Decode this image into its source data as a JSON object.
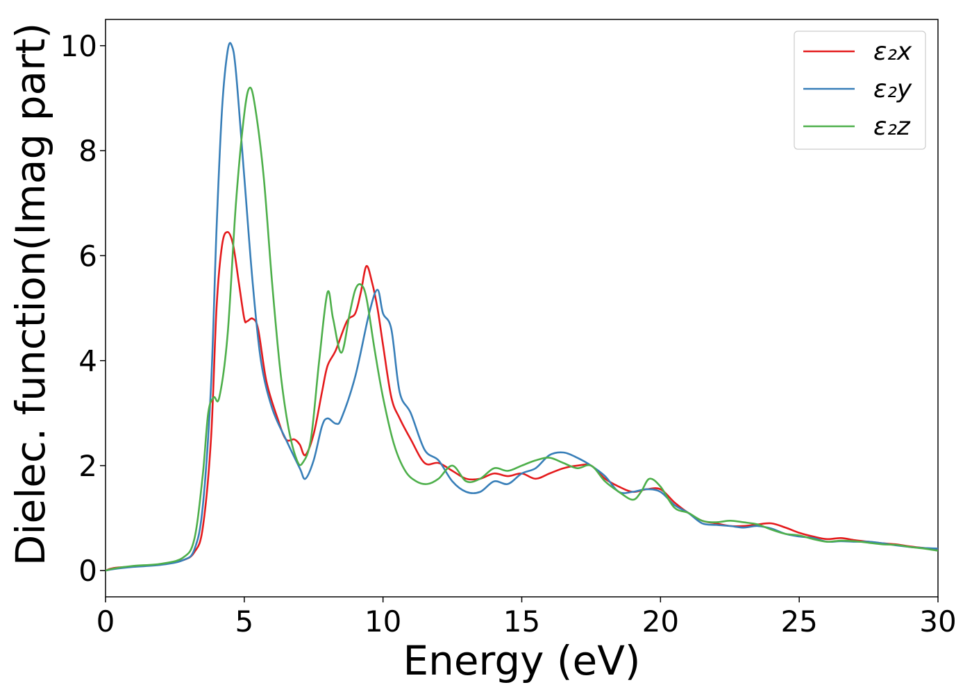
{
  "chart_data": {
    "type": "line",
    "xlabel": "Energy (eV)",
    "ylabel": "Dielec. function(Imag part)",
    "xlim": [
      0,
      30
    ],
    "ylim": [
      -0.5,
      10.5
    ],
    "xticks": [
      0,
      5,
      10,
      15,
      20,
      25,
      30
    ],
    "yticks": [
      0,
      2,
      4,
      6,
      8,
      10
    ],
    "grid": false,
    "legend_position": "top-right",
    "series": [
      {
        "name": "ε₂x",
        "color": "#e41a1c",
        "points": [
          [
            0,
            0.0
          ],
          [
            0.3,
            0.05
          ],
          [
            1,
            0.08
          ],
          [
            2,
            0.12
          ],
          [
            2.8,
            0.2
          ],
          [
            3.2,
            0.35
          ],
          [
            3.5,
            0.8
          ],
          [
            3.8,
            2.5
          ],
          [
            4.0,
            5.0
          ],
          [
            4.2,
            6.2
          ],
          [
            4.4,
            6.45
          ],
          [
            4.6,
            6.2
          ],
          [
            4.8,
            5.5
          ],
          [
            5.0,
            4.8
          ],
          [
            5.1,
            4.75
          ],
          [
            5.3,
            4.8
          ],
          [
            5.5,
            4.6
          ],
          [
            5.8,
            3.6
          ],
          [
            6.2,
            2.9
          ],
          [
            6.5,
            2.5
          ],
          [
            6.8,
            2.5
          ],
          [
            7.0,
            2.4
          ],
          [
            7.2,
            2.2
          ],
          [
            7.5,
            2.6
          ],
          [
            7.8,
            3.4
          ],
          [
            8.0,
            3.9
          ],
          [
            8.3,
            4.2
          ],
          [
            8.7,
            4.75
          ],
          [
            9.0,
            4.9
          ],
          [
            9.2,
            5.3
          ],
          [
            9.4,
            5.8
          ],
          [
            9.6,
            5.5
          ],
          [
            9.8,
            5.0
          ],
          [
            10.0,
            4.3
          ],
          [
            10.3,
            3.3
          ],
          [
            10.6,
            2.9
          ],
          [
            11.0,
            2.5
          ],
          [
            11.5,
            2.05
          ],
          [
            12.0,
            2.05
          ],
          [
            12.5,
            1.9
          ],
          [
            13.0,
            1.75
          ],
          [
            13.5,
            1.75
          ],
          [
            14.0,
            1.85
          ],
          [
            14.5,
            1.8
          ],
          [
            15.0,
            1.85
          ],
          [
            15.5,
            1.75
          ],
          [
            16.0,
            1.85
          ],
          [
            16.5,
            1.95
          ],
          [
            17.0,
            2.0
          ],
          [
            17.5,
            2.0
          ],
          [
            18.0,
            1.75
          ],
          [
            18.5,
            1.6
          ],
          [
            19.0,
            1.5
          ],
          [
            19.5,
            1.55
          ],
          [
            20.0,
            1.55
          ],
          [
            20.5,
            1.3
          ],
          [
            21.0,
            1.1
          ],
          [
            21.5,
            0.95
          ],
          [
            22.0,
            0.9
          ],
          [
            22.5,
            0.85
          ],
          [
            23.0,
            0.85
          ],
          [
            23.5,
            0.88
          ],
          [
            24.0,
            0.9
          ],
          [
            24.5,
            0.82
          ],
          [
            25.0,
            0.72
          ],
          [
            25.5,
            0.65
          ],
          [
            26.0,
            0.6
          ],
          [
            26.5,
            0.62
          ],
          [
            27.0,
            0.58
          ],
          [
            27.5,
            0.55
          ],
          [
            28.0,
            0.52
          ],
          [
            28.5,
            0.5
          ],
          [
            29.0,
            0.46
          ],
          [
            29.5,
            0.43
          ],
          [
            30.0,
            0.4
          ]
        ]
      },
      {
        "name": "ε₂y",
        "color": "#377eb8",
        "points": [
          [
            0,
            0.0
          ],
          [
            0.3,
            0.03
          ],
          [
            1,
            0.07
          ],
          [
            2,
            0.11
          ],
          [
            2.8,
            0.2
          ],
          [
            3.2,
            0.4
          ],
          [
            3.5,
            1.2
          ],
          [
            3.8,
            3.5
          ],
          [
            4.0,
            6.5
          ],
          [
            4.2,
            8.8
          ],
          [
            4.4,
            9.9
          ],
          [
            4.55,
            10.0
          ],
          [
            4.7,
            9.5
          ],
          [
            5.0,
            7.5
          ],
          [
            5.3,
            5.5
          ],
          [
            5.6,
            4.0
          ],
          [
            6.0,
            3.1
          ],
          [
            6.5,
            2.5
          ],
          [
            7.0,
            1.95
          ],
          [
            7.2,
            1.75
          ],
          [
            7.5,
            2.1
          ],
          [
            7.8,
            2.75
          ],
          [
            8.0,
            2.9
          ],
          [
            8.3,
            2.8
          ],
          [
            8.5,
            2.9
          ],
          [
            9.0,
            3.7
          ],
          [
            9.5,
            4.9
          ],
          [
            9.8,
            5.35
          ],
          [
            10.0,
            4.9
          ],
          [
            10.3,
            4.6
          ],
          [
            10.6,
            3.4
          ],
          [
            11.0,
            3.0
          ],
          [
            11.5,
            2.3
          ],
          [
            12.0,
            2.1
          ],
          [
            12.5,
            1.7
          ],
          [
            13.0,
            1.5
          ],
          [
            13.5,
            1.5
          ],
          [
            14.0,
            1.7
          ],
          [
            14.5,
            1.65
          ],
          [
            15.0,
            1.85
          ],
          [
            15.5,
            1.95
          ],
          [
            16.0,
            2.2
          ],
          [
            16.5,
            2.25
          ],
          [
            17.0,
            2.15
          ],
          [
            17.5,
            2.0
          ],
          [
            18.0,
            1.8
          ],
          [
            18.5,
            1.5
          ],
          [
            19.0,
            1.5
          ],
          [
            19.5,
            1.55
          ],
          [
            20.0,
            1.5
          ],
          [
            20.5,
            1.25
          ],
          [
            21.0,
            1.1
          ],
          [
            21.5,
            0.9
          ],
          [
            22.0,
            0.87
          ],
          [
            22.5,
            0.85
          ],
          [
            23.0,
            0.82
          ],
          [
            23.5,
            0.85
          ],
          [
            24.0,
            0.8
          ],
          [
            24.5,
            0.7
          ],
          [
            25.0,
            0.65
          ],
          [
            25.5,
            0.62
          ],
          [
            26.0,
            0.55
          ],
          [
            26.5,
            0.56
          ],
          [
            27.0,
            0.55
          ],
          [
            27.5,
            0.55
          ],
          [
            28.0,
            0.52
          ],
          [
            28.5,
            0.48
          ],
          [
            29.0,
            0.45
          ],
          [
            29.5,
            0.43
          ],
          [
            30.0,
            0.42
          ]
        ]
      },
      {
        "name": "ε₂z",
        "color": "#4daf4a",
        "points": [
          [
            0,
            0.0
          ],
          [
            0.3,
            0.04
          ],
          [
            1,
            0.09
          ],
          [
            2,
            0.13
          ],
          [
            2.8,
            0.25
          ],
          [
            3.2,
            0.6
          ],
          [
            3.5,
            1.8
          ],
          [
            3.7,
            3.0
          ],
          [
            3.9,
            3.3
          ],
          [
            4.1,
            3.3
          ],
          [
            4.4,
            4.5
          ],
          [
            4.7,
            7.0
          ],
          [
            5.0,
            8.7
          ],
          [
            5.2,
            9.2
          ],
          [
            5.4,
            8.8
          ],
          [
            5.7,
            7.5
          ],
          [
            6.0,
            5.5
          ],
          [
            6.3,
            3.8
          ],
          [
            6.6,
            2.7
          ],
          [
            6.9,
            2.1
          ],
          [
            7.1,
            2.05
          ],
          [
            7.4,
            2.5
          ],
          [
            7.7,
            4.0
          ],
          [
            8.0,
            5.3
          ],
          [
            8.2,
            4.8
          ],
          [
            8.5,
            4.15
          ],
          [
            8.8,
            4.9
          ],
          [
            9.0,
            5.35
          ],
          [
            9.2,
            5.45
          ],
          [
            9.4,
            5.2
          ],
          [
            9.7,
            4.2
          ],
          [
            10.0,
            3.3
          ],
          [
            10.4,
            2.4
          ],
          [
            10.8,
            1.9
          ],
          [
            11.2,
            1.7
          ],
          [
            11.6,
            1.65
          ],
          [
            12.0,
            1.75
          ],
          [
            12.5,
            2.0
          ],
          [
            13.0,
            1.7
          ],
          [
            13.5,
            1.75
          ],
          [
            14.0,
            1.95
          ],
          [
            14.5,
            1.9
          ],
          [
            15.0,
            2.0
          ],
          [
            15.5,
            2.1
          ],
          [
            16.0,
            2.15
          ],
          [
            16.5,
            2.05
          ],
          [
            17.0,
            1.95
          ],
          [
            17.5,
            2.0
          ],
          [
            18.0,
            1.7
          ],
          [
            18.5,
            1.5
          ],
          [
            19.0,
            1.35
          ],
          [
            19.3,
            1.5
          ],
          [
            19.6,
            1.75
          ],
          [
            20.0,
            1.6
          ],
          [
            20.5,
            1.2
          ],
          [
            21.0,
            1.1
          ],
          [
            21.5,
            0.95
          ],
          [
            22.0,
            0.92
          ],
          [
            22.5,
            0.95
          ],
          [
            23.0,
            0.92
          ],
          [
            23.5,
            0.88
          ],
          [
            24.0,
            0.78
          ],
          [
            24.5,
            0.7
          ],
          [
            25.0,
            0.67
          ],
          [
            25.5,
            0.6
          ],
          [
            26.0,
            0.55
          ],
          [
            26.5,
            0.57
          ],
          [
            27.0,
            0.56
          ],
          [
            27.5,
            0.53
          ],
          [
            28.0,
            0.5
          ],
          [
            28.5,
            0.49
          ],
          [
            29.0,
            0.45
          ],
          [
            29.5,
            0.42
          ],
          [
            30.0,
            0.38
          ]
        ]
      }
    ]
  }
}
